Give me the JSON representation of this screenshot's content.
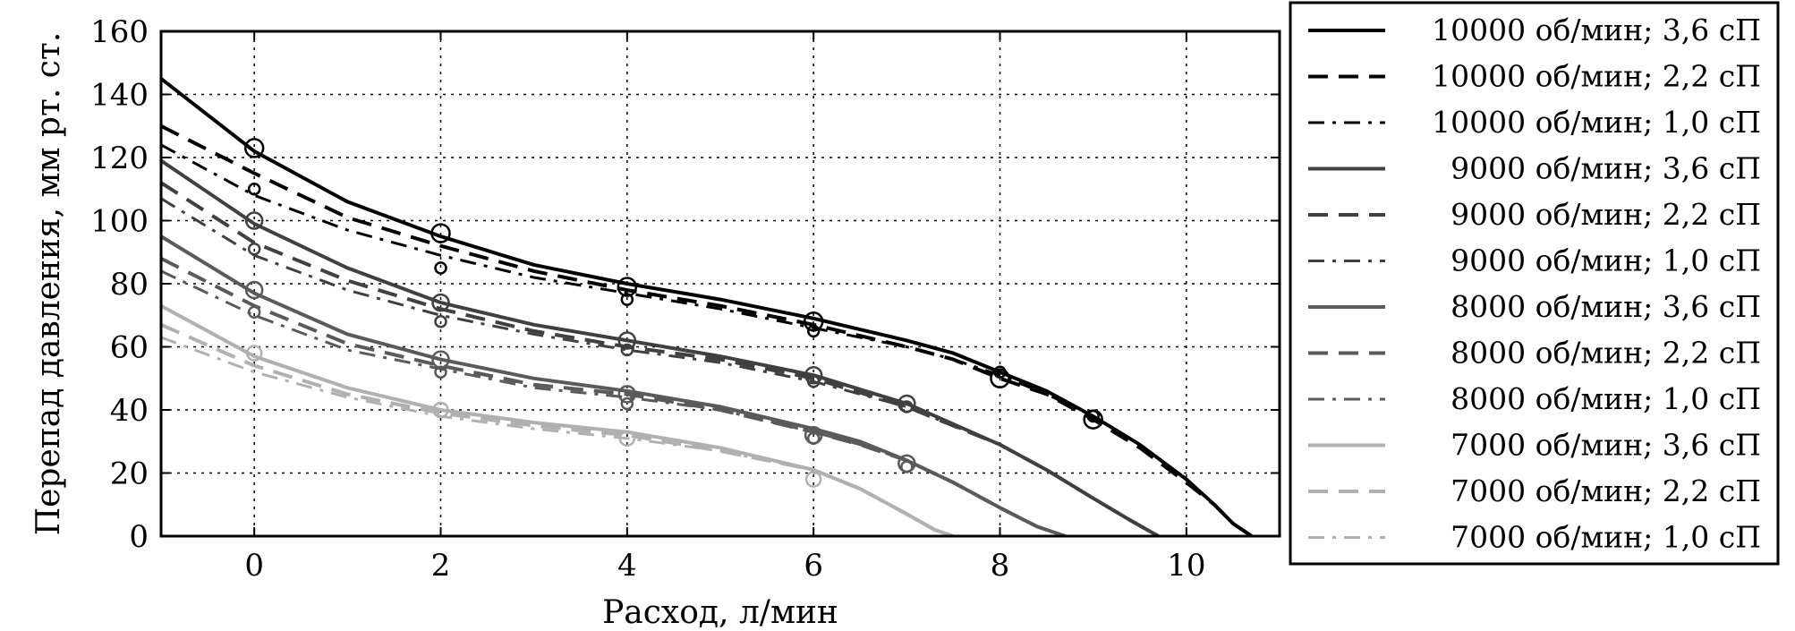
{
  "chart_data": {
    "type": "line",
    "xlabel": "Расход, л/мин",
    "ylabel": "Перепад давления, мм рт. ст.",
    "xlim": [
      -1,
      11
    ],
    "ylim": [
      0,
      160
    ],
    "x_ticks": [
      "0",
      "2",
      "4",
      "6",
      "8",
      "10"
    ],
    "y_ticks": [
      "0",
      "20",
      "40",
      "60",
      "80",
      "100",
      "120",
      "140",
      "160"
    ],
    "grid": true,
    "legend_position": "right",
    "series": [
      {
        "name": "10000 об/мин; 3,6 сП",
        "color": "#000000",
        "style": "solid",
        "width": 4,
        "x": [
          -1,
          0,
          1,
          2,
          3,
          4,
          5,
          6,
          7,
          7.5,
          8,
          8.5,
          9,
          9.5,
          10,
          10.3,
          10.5,
          10.7
        ],
        "y": [
          145,
          122,
          106,
          95,
          86,
          80,
          75,
          69,
          62,
          58,
          52,
          46,
          38,
          29,
          18,
          10,
          4,
          0
        ]
      },
      {
        "name": "10000 об/мин; 2,2 сП",
        "color": "#000000",
        "style": "dashed",
        "width": 4,
        "x": [
          -1,
          0,
          1,
          2,
          3,
          4,
          5,
          6,
          7,
          7.5,
          8,
          8.5,
          9,
          9.5,
          10,
          10.3,
          10.5,
          10.7
        ],
        "y": [
          130,
          115,
          101,
          92,
          84,
          78,
          73,
          67,
          60,
          56,
          50,
          45,
          37,
          28,
          17,
          10,
          4,
          0
        ]
      },
      {
        "name": "10000 об/мин; 1,0 сП",
        "color": "#000000",
        "style": "dashdot",
        "width": 3,
        "x": [
          -1,
          0,
          1,
          2,
          3,
          4,
          5,
          6,
          7,
          7.5,
          8,
          8.5,
          9,
          9.5,
          10,
          10.3,
          10.5,
          10.7
        ],
        "y": [
          124,
          108,
          97,
          89,
          82,
          77,
          72,
          66,
          60,
          56,
          51,
          45,
          38,
          29,
          18,
          10,
          4,
          0
        ]
      },
      {
        "name": "9000 об/мин; 3,6 сП",
        "color": "#404040",
        "style": "solid",
        "width": 4,
        "x": [
          -1,
          0,
          1,
          2,
          3,
          4,
          5,
          6,
          7,
          8,
          8.5,
          9,
          9.4,
          9.7
        ],
        "y": [
          119,
          99,
          85,
          74,
          67,
          62,
          57,
          51,
          42,
          29,
          21,
          12,
          5,
          0
        ]
      },
      {
        "name": "9000 об/мин; 2,2 сП",
        "color": "#404040",
        "style": "dashed",
        "width": 4,
        "x": [
          -1,
          0,
          1,
          2,
          3,
          4,
          5,
          6,
          7,
          8,
          8.5,
          9,
          9.4,
          9.7
        ],
        "y": [
          112,
          93,
          81,
          72,
          65,
          60,
          56,
          50,
          41,
          29,
          21,
          12,
          5,
          0
        ]
      },
      {
        "name": "9000 об/мин; 1,0 сП",
        "color": "#404040",
        "style": "dashdot",
        "width": 3,
        "x": [
          -1,
          0,
          1,
          2,
          3,
          4,
          5,
          6,
          7,
          8,
          8.5,
          9,
          9.4,
          9.7
        ],
        "y": [
          107,
          89,
          78,
          70,
          64,
          59,
          55,
          49,
          41,
          29,
          21,
          12,
          5,
          0
        ]
      },
      {
        "name": "8000 об/мин; 3,6 сП",
        "color": "#5a5a5a",
        "style": "solid",
        "width": 4,
        "x": [
          -1,
          0,
          1,
          2,
          3,
          4,
          5,
          6,
          6.5,
          7,
          7.5,
          8,
          8.4,
          8.7
        ],
        "y": [
          95,
          77,
          64,
          56,
          50,
          46,
          41,
          34,
          30,
          24,
          17,
          9,
          3,
          0
        ]
      },
      {
        "name": "8000 об/мин; 2,2 сП",
        "color": "#5a5a5a",
        "style": "dashed",
        "width": 4,
        "x": [
          -1,
          0,
          1,
          2,
          3,
          4,
          5,
          6,
          6.5,
          7,
          7.5,
          8,
          8.4,
          8.7
        ],
        "y": [
          88,
          73,
          61,
          54,
          48,
          45,
          40,
          33,
          29,
          24,
          17,
          9,
          3,
          0
        ]
      },
      {
        "name": "8000 об/мин; 1,0 сП",
        "color": "#5a5a5a",
        "style": "dashdot",
        "width": 3,
        "x": [
          -1,
          0,
          1,
          2,
          3,
          4,
          5,
          6,
          6.5,
          7,
          7.5,
          8,
          8.4,
          8.7
        ],
        "y": [
          84,
          70,
          59,
          53,
          47,
          44,
          40,
          33,
          29,
          24,
          17,
          9,
          3,
          0
        ]
      },
      {
        "name": "7000 об/мин; 3,6 сП",
        "color": "#b0b0b0",
        "style": "solid",
        "width": 4,
        "x": [
          -1,
          0,
          1,
          2,
          3,
          4,
          5,
          6,
          6.5,
          7,
          7.3,
          7.5
        ],
        "y": [
          73,
          57,
          47,
          40,
          36,
          33,
          28,
          21,
          15,
          7,
          2,
          0
        ]
      },
      {
        "name": "7000 об/мин; 2,2 сП",
        "color": "#b0b0b0",
        "style": "dashed",
        "width": 4,
        "x": [
          -1,
          0,
          1,
          2,
          3,
          4,
          5,
          6,
          6.5,
          7,
          7.3,
          7.5
        ],
        "y": [
          67,
          54,
          45,
          39,
          35,
          32,
          27,
          21,
          15,
          7,
          2,
          0
        ]
      },
      {
        "name": "7000 об/мин; 1,0 сП",
        "color": "#b0b0b0",
        "style": "dashdot",
        "width": 3,
        "x": [
          -1,
          0,
          1,
          2,
          3,
          4,
          5,
          6,
          6.5,
          7,
          7.3,
          7.5
        ],
        "y": [
          63,
          52,
          44,
          38,
          34,
          31,
          27,
          21,
          15,
          7,
          2,
          0
        ]
      }
    ],
    "markers": [
      {
        "color": "#000000",
        "r": 10,
        "points": [
          [
            0,
            123
          ],
          [
            2,
            96
          ],
          [
            4,
            79
          ],
          [
            6,
            68
          ],
          [
            8,
            50
          ],
          [
            9,
            37
          ]
        ]
      },
      {
        "color": "#000000",
        "r": 6,
        "points": [
          [
            0,
            110
          ],
          [
            2,
            85
          ],
          [
            4,
            75
          ],
          [
            6,
            65
          ],
          [
            8,
            52
          ],
          [
            9,
            38
          ]
        ]
      },
      {
        "color": "#404040",
        "r": 9,
        "points": [
          [
            0,
            100
          ],
          [
            2,
            74
          ],
          [
            4,
            62
          ],
          [
            6,
            51
          ],
          [
            7,
            42
          ]
        ]
      },
      {
        "color": "#404040",
        "r": 6,
        "points": [
          [
            0,
            91
          ],
          [
            2,
            68
          ],
          [
            4,
            59
          ],
          [
            6,
            49
          ],
          [
            7,
            41
          ]
        ]
      },
      {
        "color": "#5a5a5a",
        "r": 9,
        "points": [
          [
            0,
            78
          ],
          [
            2,
            56
          ],
          [
            4,
            45
          ],
          [
            6,
            32
          ],
          [
            7,
            23
          ]
        ]
      },
      {
        "color": "#5a5a5a",
        "r": 6,
        "points": [
          [
            0,
            71
          ],
          [
            2,
            52
          ],
          [
            4,
            42
          ],
          [
            6,
            31
          ],
          [
            7,
            22
          ]
        ]
      },
      {
        "color": "#b0b0b0",
        "r": 8,
        "points": [
          [
            0,
            58
          ],
          [
            2,
            40
          ],
          [
            4,
            31
          ],
          [
            6,
            18
          ]
        ]
      }
    ]
  }
}
